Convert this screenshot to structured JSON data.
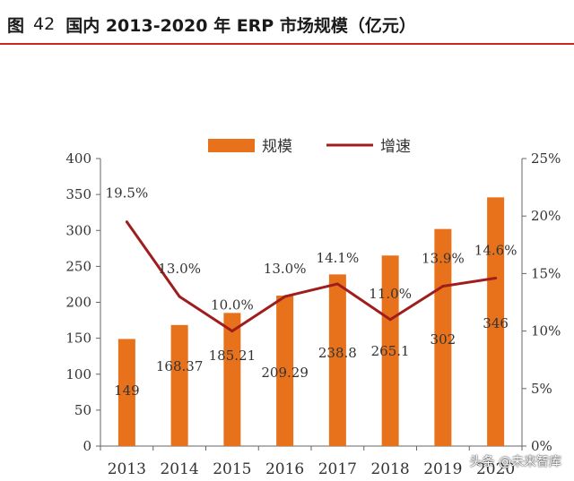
{
  "header": {
    "fig_label": "图",
    "fig_number": "42",
    "title": "国内 2013-2020 年 ERP 市场规模（亿元）"
  },
  "watermark": "头条 @未来智库",
  "chart_data": {
    "type": "bar",
    "title": "国内 2013-2020 年 ERP 市场规模（亿元）",
    "categories": [
      "2013",
      "2014",
      "2015",
      "2016",
      "2017",
      "2018",
      "2019",
      "2020"
    ],
    "series": [
      {
        "name": "规模",
        "kind": "bar",
        "axis": "left",
        "color": "#e8721c",
        "values": [
          149,
          168.37,
          185.21,
          209.29,
          238.8,
          265.1,
          302,
          346
        ],
        "labels": [
          "149",
          "168.37",
          "185.21",
          "209.29",
          "238.8",
          "265.1",
          "302",
          "346"
        ]
      },
      {
        "name": "增速",
        "kind": "line",
        "axis": "right",
        "color": "#a01d1d",
        "values": [
          19.5,
          13.0,
          10.0,
          13.0,
          14.1,
          11.0,
          13.9,
          14.6
        ],
        "labels": [
          "19.5%",
          "13.0%",
          "10.0%",
          "13.0%",
          "14.1%",
          "11.0%",
          "13.9%",
          "14.6%"
        ]
      }
    ],
    "y_left": {
      "min": 0,
      "max": 400,
      "ticks": [
        0,
        50,
        100,
        150,
        200,
        250,
        300,
        350,
        400
      ],
      "tick_labels": [
        "0",
        "50",
        "100",
        "150",
        "200",
        "250",
        "300",
        "350",
        "400"
      ]
    },
    "y_right": {
      "min": 0,
      "max": 25,
      "ticks": [
        0,
        5,
        10,
        15,
        20,
        25
      ],
      "tick_labels": [
        "0%",
        "5%",
        "10%",
        "15%",
        "20%",
        "25%"
      ]
    },
    "legend": {
      "placement": "top-center",
      "items": [
        {
          "label": "规模",
          "color": "#e8721c",
          "shape": "bar"
        },
        {
          "label": "增速",
          "color": "#a01d1d",
          "shape": "line"
        }
      ]
    },
    "grid": false
  }
}
